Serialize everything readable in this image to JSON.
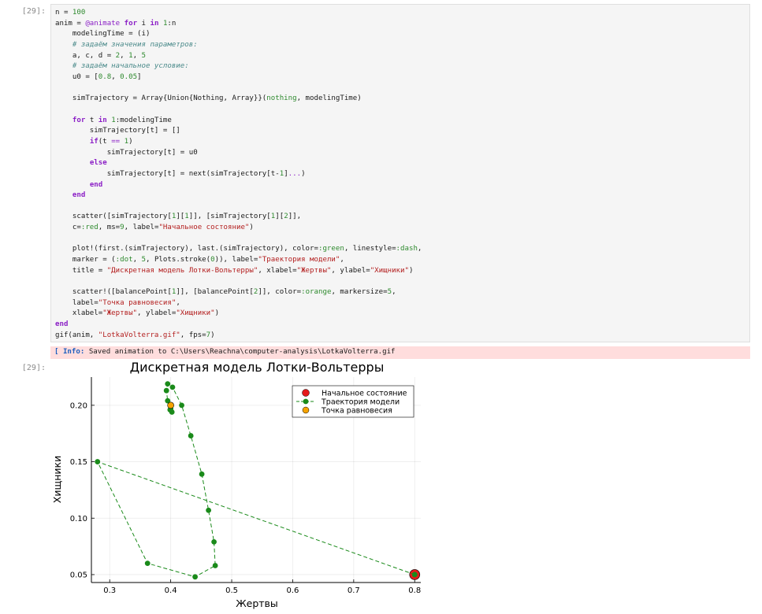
{
  "cells": {
    "code_prompt": "[29]:",
    "output_prompt": "[29]:",
    "code_lines": [
      [
        [
          "n = ",
          ""
        ],
        [
          "100",
          "num"
        ]
      ],
      [
        [
          "anim = ",
          ""
        ],
        [
          "@animate",
          "mac"
        ],
        [
          " ",
          ""
        ],
        [
          "for",
          "kw"
        ],
        [
          " i ",
          ""
        ],
        [
          "in",
          "kw"
        ],
        [
          " ",
          ""
        ],
        [
          "1",
          "num"
        ],
        [
          ":n",
          ""
        ]
      ],
      [
        [
          "    modelingTime = (i)",
          ""
        ]
      ],
      [
        [
          "    # задаём значения параметров:",
          "cmt"
        ]
      ],
      [
        [
          "    a, c, d = ",
          ""
        ],
        [
          "2",
          "num"
        ],
        [
          ", ",
          ""
        ],
        [
          "1",
          "num"
        ],
        [
          ", ",
          ""
        ],
        [
          "5",
          "num"
        ]
      ],
      [
        [
          "    # задаём начальное условие:",
          "cmt"
        ]
      ],
      [
        [
          "    u0 = [",
          ""
        ],
        [
          "0.8",
          "num"
        ],
        [
          ", ",
          ""
        ],
        [
          "0.05",
          "num"
        ],
        [
          "]",
          ""
        ]
      ],
      [
        [
          "",
          ""
        ]
      ],
      [
        [
          "    simTrajectory = Array{Union{Nothing, Array}}(",
          ""
        ],
        [
          "nothing",
          "sym"
        ],
        [
          ", modelingTime)",
          ""
        ]
      ],
      [
        [
          "",
          ""
        ]
      ],
      [
        [
          "    ",
          ""
        ],
        [
          "for",
          "kw"
        ],
        [
          " t ",
          ""
        ],
        [
          "in",
          "kw"
        ],
        [
          " ",
          ""
        ],
        [
          "1",
          "num"
        ],
        [
          ":modelingTime",
          ""
        ]
      ],
      [
        [
          "        simTrajectory[t] = []",
          ""
        ]
      ],
      [
        [
          "        ",
          ""
        ],
        [
          "if",
          "kw"
        ],
        [
          "(t ",
          ""
        ],
        [
          "==",
          "op"
        ],
        [
          " ",
          ""
        ],
        [
          "1",
          "num"
        ],
        [
          ")",
          ""
        ]
      ],
      [
        [
          "            simTrajectory[t] = u0",
          ""
        ]
      ],
      [
        [
          "        ",
          ""
        ],
        [
          "else",
          "kw"
        ]
      ],
      [
        [
          "            simTrajectory[t] = next(simTrajectory[t-",
          ""
        ],
        [
          "1",
          "num"
        ],
        [
          "]",
          ""
        ],
        [
          "...",
          "op"
        ],
        [
          ")",
          ""
        ]
      ],
      [
        [
          "        ",
          ""
        ],
        [
          "end",
          "kw"
        ]
      ],
      [
        [
          "    ",
          ""
        ],
        [
          "end",
          "kw"
        ]
      ],
      [
        [
          "",
          ""
        ]
      ],
      [
        [
          "    scatter([simTrajectory[",
          ""
        ],
        [
          "1",
          "num"
        ],
        [
          "][",
          ""
        ],
        [
          "1",
          "num"
        ],
        [
          "]], [simTrajectory[",
          ""
        ],
        [
          "1",
          "num"
        ],
        [
          "][",
          ""
        ],
        [
          "2",
          "num"
        ],
        [
          "]],",
          ""
        ]
      ],
      [
        [
          "    c=",
          ""
        ],
        [
          ":red",
          "sym"
        ],
        [
          ", ms=",
          ""
        ],
        [
          "9",
          "num"
        ],
        [
          ", label=",
          ""
        ],
        [
          "\"Начальное состояние\"",
          "str"
        ],
        [
          ")",
          ""
        ]
      ],
      [
        [
          "",
          ""
        ]
      ],
      [
        [
          "    plot!(first.(simTrajectory), last.(simTrajectory), color=",
          ""
        ],
        [
          ":green",
          "sym"
        ],
        [
          ", linestyle=",
          ""
        ],
        [
          ":dash",
          "sym"
        ],
        [
          ",",
          ""
        ]
      ],
      [
        [
          "    marker = (",
          ""
        ],
        [
          ":dot",
          "sym"
        ],
        [
          ", ",
          ""
        ],
        [
          "5",
          "num"
        ],
        [
          ", Plots.stroke(",
          ""
        ],
        [
          "0",
          "num"
        ],
        [
          ")), label=",
          ""
        ],
        [
          "\"Траектория модели\"",
          "str"
        ],
        [
          ",",
          ""
        ]
      ],
      [
        [
          "    title = ",
          ""
        ],
        [
          "\"Дискретная модель Лотки-Вольтерры\"",
          "str"
        ],
        [
          ", xlabel=",
          ""
        ],
        [
          "\"Жертвы\"",
          "str"
        ],
        [
          ", ylabel=",
          ""
        ],
        [
          "\"Хищники\"",
          "str"
        ],
        [
          ")",
          ""
        ]
      ],
      [
        [
          "",
          ""
        ]
      ],
      [
        [
          "    scatter!([balancePoint[",
          ""
        ],
        [
          "1",
          "num"
        ],
        [
          "]], [balancePoint[",
          ""
        ],
        [
          "2",
          "num"
        ],
        [
          "]], color=",
          ""
        ],
        [
          ":orange",
          "sym"
        ],
        [
          ", markersize=",
          ""
        ],
        [
          "5",
          "num"
        ],
        [
          ",",
          ""
        ]
      ],
      [
        [
          "    label=",
          ""
        ],
        [
          "\"Точка равновесия\"",
          "str"
        ],
        [
          ",",
          ""
        ]
      ],
      [
        [
          "    xlabel=",
          ""
        ],
        [
          "\"Жертвы\"",
          "str"
        ],
        [
          ", ylabel=",
          ""
        ],
        [
          "\"Хищники\"",
          "str"
        ],
        [
          ")",
          ""
        ]
      ],
      [
        [
          "end",
          "kw"
        ]
      ],
      [
        [
          "gif(anim, ",
          ""
        ],
        [
          "\"LotkaVolterra.gif\"",
          "str"
        ],
        [
          ", fps=",
          ""
        ],
        [
          "7",
          "num"
        ],
        [
          ")",
          ""
        ]
      ]
    ],
    "stderr_prefix": "[ Info: ",
    "stderr_text": "Saved animation to C:\\Users\\Reachna\\computer-analysis\\LotkaVolterra.gif"
  },
  "chart_data": {
    "type": "scatter",
    "title": "Дискретная модель Лотки-Вольтерры",
    "xlabel": "Жертвы",
    "ylabel": "Хищники",
    "xlim": [
      0.27,
      0.81
    ],
    "ylim": [
      0.043,
      0.225
    ],
    "xticks": [
      0.3,
      0.4,
      0.5,
      0.6,
      0.7,
      0.8
    ],
    "xtick_labels": [
      "0.3",
      "0.4",
      "0.5",
      "0.6",
      "0.7",
      "0.8"
    ],
    "yticks": [
      0.05,
      0.1,
      0.15,
      0.2
    ],
    "ytick_labels": [
      "0.05",
      "0.10",
      "0.15",
      "0.20"
    ],
    "grid": true,
    "legend_position": "top-right",
    "series": [
      {
        "name": "Начальное состояние",
        "style": "marker",
        "color": "#e41a1c",
        "x": [
          0.8
        ],
        "y": [
          0.05
        ]
      },
      {
        "name": "Траектория модели",
        "style": "dashed-line-markers",
        "color": "#1a8a1a",
        "x": [
          0.8,
          0.28,
          0.362,
          0.44,
          0.473,
          0.471,
          0.462,
          0.451,
          0.433,
          0.418,
          0.403,
          0.395,
          0.393,
          0.395,
          0.399,
          0.402,
          0.4
        ],
        "y": [
          0.05,
          0.15,
          0.06,
          0.048,
          0.058,
          0.079,
          0.107,
          0.139,
          0.173,
          0.2,
          0.216,
          0.219,
          0.213,
          0.204,
          0.196,
          0.194,
          0.197
        ]
      },
      {
        "name": "Точка равновесия",
        "style": "marker",
        "color": "#f5a300",
        "x": [
          0.4
        ],
        "y": [
          0.2
        ]
      }
    ]
  }
}
